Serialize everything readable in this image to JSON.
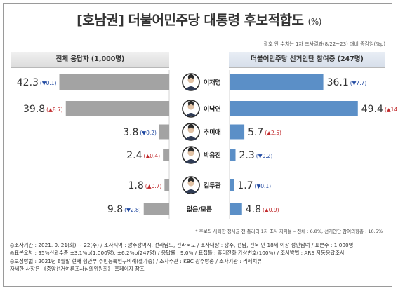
{
  "title": "[호남권] 더불어민주당 대통령 후보적합도",
  "title_unit": "(%)",
  "top_note": "괄호 안 수치는 1차 조사결과(8/22~23) 대비 증감임(%p)",
  "chart_data": {
    "type": "bar",
    "categories": [
      "이재명",
      "이낙연",
      "추미애",
      "박용진",
      "김두관",
      "없음/모름"
    ],
    "series": [
      {
        "name": "전체 응답자 (1,000명)",
        "values": [
          42.3,
          39.8,
          3.8,
          2.4,
          1.8,
          9.8
        ],
        "changes": [
          {
            "dir": "down",
            "value": "0.1"
          },
          {
            "dir": "up",
            "value": "8.7"
          },
          {
            "dir": "down",
            "value": "0.2"
          },
          {
            "dir": "up",
            "value": "0.4"
          },
          {
            "dir": "up",
            "value": "0.7"
          },
          {
            "dir": "down",
            "value": "2.8"
          }
        ],
        "color": "#a3a3a3"
      },
      {
        "name": "더불어민주당 선거인단 참여층 (247명)",
        "values": [
          36.1,
          49.4,
          5.7,
          2.3,
          1.7,
          4.8
        ],
        "changes": [
          {
            "dir": "down",
            "value": "7.7"
          },
          {
            "dir": "up",
            "value": "14.1"
          },
          {
            "dir": "up",
            "value": "2.5"
          },
          {
            "dir": "down",
            "value": "0.2"
          },
          {
            "dir": "down",
            "value": "0.1"
          },
          {
            "dir": "up",
            "value": "0.9"
          }
        ],
        "color": "#5b8fc7"
      }
    ],
    "xlim": [
      0,
      60
    ],
    "legend": "none",
    "grid": false
  },
  "arrows": {
    "up": "▲",
    "down": "▼"
  },
  "footnote": "* 후보직 사퇴한 정세균 전 총리의 1차 조사 지지율 – 전체 : 6.8%, 선거인단 참여의향층 : 10.5%",
  "meta_lines": [
    "◎조사기간 : 2021. 9. 21(화) ~ 22(수) / 조사지역 : 광주광역시, 전라남도, 전라북도 / 조사대상 : 광주, 전남, 전북 만 18세 이상 성인남녀 / 표본수 : 1,000명",
    "◎표본오차 : 95%신뢰수준 ±3.1%p(1,000명), ±6.2%p(247명) / 응답률 : 9.0% / 표집틀 : 휴대전화 가상번호(100%) / 조사방법 : ARS 자동응답조사",
    "◎보정방법 : 2021년 6월말 현재 행안부 주민등록인구비례(셀가중) / 조사주관 : KBC 광주방송 / 조사기관 : 리서치뷰",
    "자세한 사항은 《중앙선거여론조사심의위원회》 홈페이지 참조"
  ],
  "icons": {
    "portrait": "person-portrait-icon"
  },
  "colors": {
    "left_bar": "#a3a3a3",
    "right_bar": "#5b8fc7",
    "up": "#c0282a",
    "down": "#1e47a0"
  }
}
